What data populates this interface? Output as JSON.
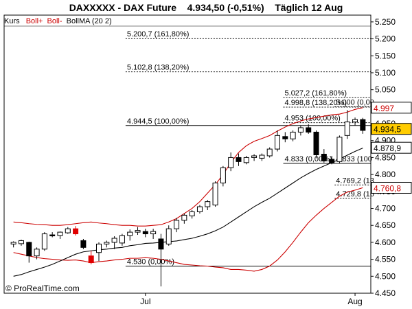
{
  "header": {
    "symbol": "DAXXXXX - DAX Future",
    "price": "4.934,50 (-0,51%)",
    "period": "Täglich  12 Aug"
  },
  "legend": {
    "kurs": "Kurs",
    "boll_plus": "Boll+",
    "boll_minus": "Boll-",
    "bollma": "BollMA (20 2)"
  },
  "watermark": "© ProRealTime.com",
  "colors": {
    "background": "#ffffff",
    "up_candle": "#ffffff",
    "down_candle": "#000000",
    "bollinger": "#cc0000",
    "moving_average": "#000000",
    "highlight_candle": "#e00000",
    "price_box": "#ffcc00",
    "price_box_red_text": "#cc0000"
  },
  "chart_data": {
    "type": "candlestick",
    "y_range": [
      4450,
      5270
    ],
    "y_ticks": [
      5250,
      5200,
      5150,
      5100,
      5050,
      5000,
      4950,
      4900,
      4850,
      4800,
      4750,
      4700,
      4650,
      4600,
      4550,
      4500,
      4450
    ],
    "y_tick_labels": [
      "5.250",
      "5.200",
      "5.150",
      "5.100",
      "5.050",
      "5.000",
      "4.950",
      "4.900",
      "4.850",
      "4.800",
      "4.750",
      "4.700",
      "4.650",
      "4.600",
      "4.550",
      "4.500",
      "4.450"
    ],
    "x_labels": [
      {
        "label": "Jul",
        "index": 17
      },
      {
        "label": "Aug",
        "index": 44
      }
    ],
    "candles": [
      {
        "o": 4595,
        "h": 4603,
        "l": 4585,
        "c": 4600
      },
      {
        "o": 4596,
        "h": 4608,
        "l": 4590,
        "c": 4605
      },
      {
        "o": 4600,
        "h": 4602,
        "l": 4540,
        "c": 4560
      },
      {
        "o": 4560,
        "h": 4585,
        "l": 4550,
        "c": 4580
      },
      {
        "o": 4580,
        "h": 4630,
        "l": 4575,
        "c": 4625
      },
      {
        "o": 4622,
        "h": 4630,
        "l": 4615,
        "c": 4620
      },
      {
        "o": 4620,
        "h": 4632,
        "l": 4610,
        "c": 4630
      },
      {
        "o": 4628,
        "h": 4645,
        "l": 4625,
        "c": 4640
      },
      {
        "o": 4640,
        "h": 4648,
        "l": 4620,
        "c": 4625,
        "hl": true
      },
      {
        "o": 4605,
        "h": 4610,
        "l": 4580,
        "c": 4585
      },
      {
        "o": 4560,
        "h": 4575,
        "l": 4535,
        "c": 4540,
        "hl": true
      },
      {
        "o": 4570,
        "h": 4600,
        "l": 4545,
        "c": 4595
      },
      {
        "o": 4595,
        "h": 4605,
        "l": 4585,
        "c": 4600
      },
      {
        "o": 4600,
        "h": 4618,
        "l": 4580,
        "c": 4612
      },
      {
        "o": 4598,
        "h": 4625,
        "l": 4590,
        "c": 4620
      },
      {
        "o": 4620,
        "h": 4638,
        "l": 4605,
        "c": 4630
      },
      {
        "o": 4630,
        "h": 4645,
        "l": 4622,
        "c": 4635
      },
      {
        "o": 4632,
        "h": 4640,
        "l": 4615,
        "c": 4625
      },
      {
        "o": 4625,
        "h": 4640,
        "l": 4610,
        "c": 4632
      },
      {
        "o": 4610,
        "h": 4625,
        "l": 4470,
        "c": 4580
      },
      {
        "o": 4595,
        "h": 4650,
        "l": 4590,
        "c": 4640
      },
      {
        "o": 4640,
        "h": 4672,
        "l": 4630,
        "c": 4665
      },
      {
        "o": 4665,
        "h": 4685,
        "l": 4655,
        "c": 4680
      },
      {
        "o": 4678,
        "h": 4695,
        "l": 4670,
        "c": 4690
      },
      {
        "o": 4690,
        "h": 4710,
        "l": 4685,
        "c": 4705
      },
      {
        "o": 4705,
        "h": 4725,
        "l": 4695,
        "c": 4720
      },
      {
        "o": 4710,
        "h": 4780,
        "l": 4705,
        "c": 4775
      },
      {
        "o": 4775,
        "h": 4825,
        "l": 4765,
        "c": 4820
      },
      {
        "o": 4820,
        "h": 4865,
        "l": 4810,
        "c": 4850
      },
      {
        "o": 4850,
        "h": 4862,
        "l": 4825,
        "c": 4838
      },
      {
        "o": 4835,
        "h": 4855,
        "l": 4830,
        "c": 4850
      },
      {
        "o": 4850,
        "h": 4860,
        "l": 4840,
        "c": 4855
      },
      {
        "o": 4848,
        "h": 4862,
        "l": 4840,
        "c": 4857
      },
      {
        "o": 4855,
        "h": 4880,
        "l": 4850,
        "c": 4875
      },
      {
        "o": 4875,
        "h": 4930,
        "l": 4868,
        "c": 4915
      },
      {
        "o": 4912,
        "h": 4925,
        "l": 4895,
        "c": 4905
      },
      {
        "o": 4905,
        "h": 4930,
        "l": 4898,
        "c": 4925
      },
      {
        "o": 4925,
        "h": 4945,
        "l": 4915,
        "c": 4938
      },
      {
        "o": 4938,
        "h": 4948,
        "l": 4920,
        "c": 4925
      },
      {
        "o": 4925,
        "h": 4930,
        "l": 4848,
        "c": 4858
      },
      {
        "o": 4860,
        "h": 4875,
        "l": 4835,
        "c": 4840
      },
      {
        "o": 4845,
        "h": 4855,
        "l": 4830,
        "c": 4835
      },
      {
        "o": 4838,
        "h": 4915,
        "l": 4833,
        "c": 4910
      },
      {
        "o": 4915,
        "h": 4990,
        "l": 4905,
        "c": 4955
      },
      {
        "o": 4955,
        "h": 4968,
        "l": 4945,
        "c": 4962
      },
      {
        "o": 4962,
        "h": 4967,
        "l": 4920,
        "c": 4930
      }
    ],
    "boll_upper": [
      4660,
      4658,
      4655,
      4653,
      4652,
      4650,
      4650,
      4652,
      4655,
      4658,
      4660,
      4657,
      4655,
      4652,
      4650,
      4650,
      4648,
      4648,
      4650,
      4652,
      4660,
      4670,
      4685,
      4700,
      4720,
      4745,
      4770,
      4800,
      4835,
      4865,
      4885,
      4898,
      4906,
      4915,
      4928,
      4940,
      4950,
      4958,
      4964,
      4968,
      4972,
      4976,
      4978,
      4984,
      4992,
      4997
    ],
    "boll_lower": [
      4570,
      4565,
      4560,
      4555,
      4552,
      4550,
      4548,
      4547,
      4548,
      4545,
      4540,
      4543,
      4545,
      4548,
      4550,
      4553,
      4553,
      4555,
      4553,
      4550,
      4545,
      4540,
      4535,
      4533,
      4531,
      4530,
      4527,
      4525,
      4520,
      4520,
      4518,
      4515,
      4520,
      4530,
      4548,
      4572,
      4600,
      4630,
      4658,
      4680,
      4700,
      4718,
      4736,
      4748,
      4754,
      4761
    ],
    "moving_average": [
      4500,
      4505,
      4513,
      4520,
      4527,
      4535,
      4545,
      4555,
      4565,
      4572,
      4575,
      4578,
      4580,
      4583,
      4585,
      4590,
      4593,
      4597,
      4598,
      4600,
      4602,
      4604,
      4608,
      4612,
      4618,
      4625,
      4634,
      4645,
      4660,
      4675,
      4690,
      4705,
      4718,
      4730,
      4745,
      4760,
      4775,
      4790,
      4803,
      4815,
      4825,
      4835,
      4845,
      4857,
      4868,
      4878
    ],
    "price_boxes": [
      {
        "label": "4.997",
        "value": 4997,
        "text_color": "red"
      },
      {
        "label": "4.934,5",
        "value": 4934.5,
        "text_color": "black",
        "highlight": true
      },
      {
        "label": "4.878,9",
        "value": 4878.9,
        "text_color": "black"
      },
      {
        "label": "4.760,8",
        "value": 4760.8,
        "text_color": "red"
      }
    ],
    "fib_lines": [
      {
        "label": "5.200,7 (161,80%)",
        "value": 5200.7,
        "style": "dotted",
        "from": 0.35,
        "to": 1.0
      },
      {
        "label": "5.102,8 (138,20%)",
        "value": 5102.8,
        "style": "dotted",
        "from": 0.35,
        "to": 1.0
      },
      {
        "label": "4.944,5 (100,00%)",
        "value": 4944.5,
        "style": "solid",
        "from": 0.35,
        "to": 1.0
      },
      {
        "label": "4.530 (0,00%)",
        "value": 4530,
        "style": "solid",
        "from": 0.35,
        "to": 1.0
      },
      {
        "label": "5.027,2 (161,80%)",
        "value": 5027.2,
        "style": "dotted",
        "from": 0.78,
        "to": 1.0
      },
      {
        "label": "4.998,8 (138,20%)",
        "value": 4998.8,
        "style": "dotted",
        "from": 0.78,
        "to": 1.0
      },
      {
        "label": "4.953 (100,00%)",
        "value": 4953,
        "style": "dotted",
        "from": 0.78,
        "to": 1.0
      },
      {
        "label": "4.833 (0,00%)",
        "value": 4833,
        "style": "solid",
        "from": 0.78,
        "to": 1.0
      },
      {
        "label": "5.000 (0,00",
        "value": 5000,
        "style": "dotted",
        "from": 0.92,
        "to": 1.0
      },
      {
        "label": "4.833 (100",
        "value": 4833,
        "style": "none",
        "from": 0.92,
        "to": 1.0
      },
      {
        "label": "4.769,2 (13",
        "value": 4769.2,
        "style": "dotted",
        "from": 0.92,
        "to": 1.0
      },
      {
        "label": "4.729,8 (16",
        "value": 4729.8,
        "style": "dotted",
        "from": 0.92,
        "to": 1.0
      }
    ]
  }
}
